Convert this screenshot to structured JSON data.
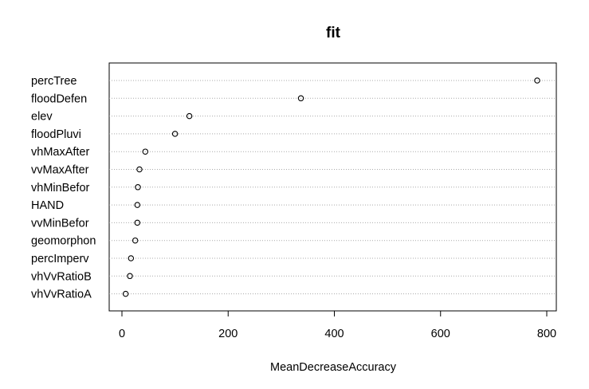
{
  "chart_data": {
    "type": "scatter",
    "title": "fit",
    "xlabel": "MeanDecreaseAccuracy",
    "ylabel": "",
    "xlim": [
      -20,
      815
    ],
    "xticks": [
      0,
      200,
      400,
      600,
      800
    ],
    "grid": "horizontal dotted",
    "marker": "open-circle",
    "categories": [
      "percTree",
      "floodDefen",
      "elev",
      "floodPluvi",
      "vhMaxAfter",
      "vvMaxAfter",
      "vhMinBefor",
      "HAND",
      "vvMinBefor",
      "geomorphon",
      "percImperv",
      "vhVvRatioB",
      "vhVvRatioA"
    ],
    "values": [
      782,
      337,
      127,
      100,
      44,
      33,
      30,
      29,
      29,
      25,
      17,
      15,
      7
    ]
  }
}
